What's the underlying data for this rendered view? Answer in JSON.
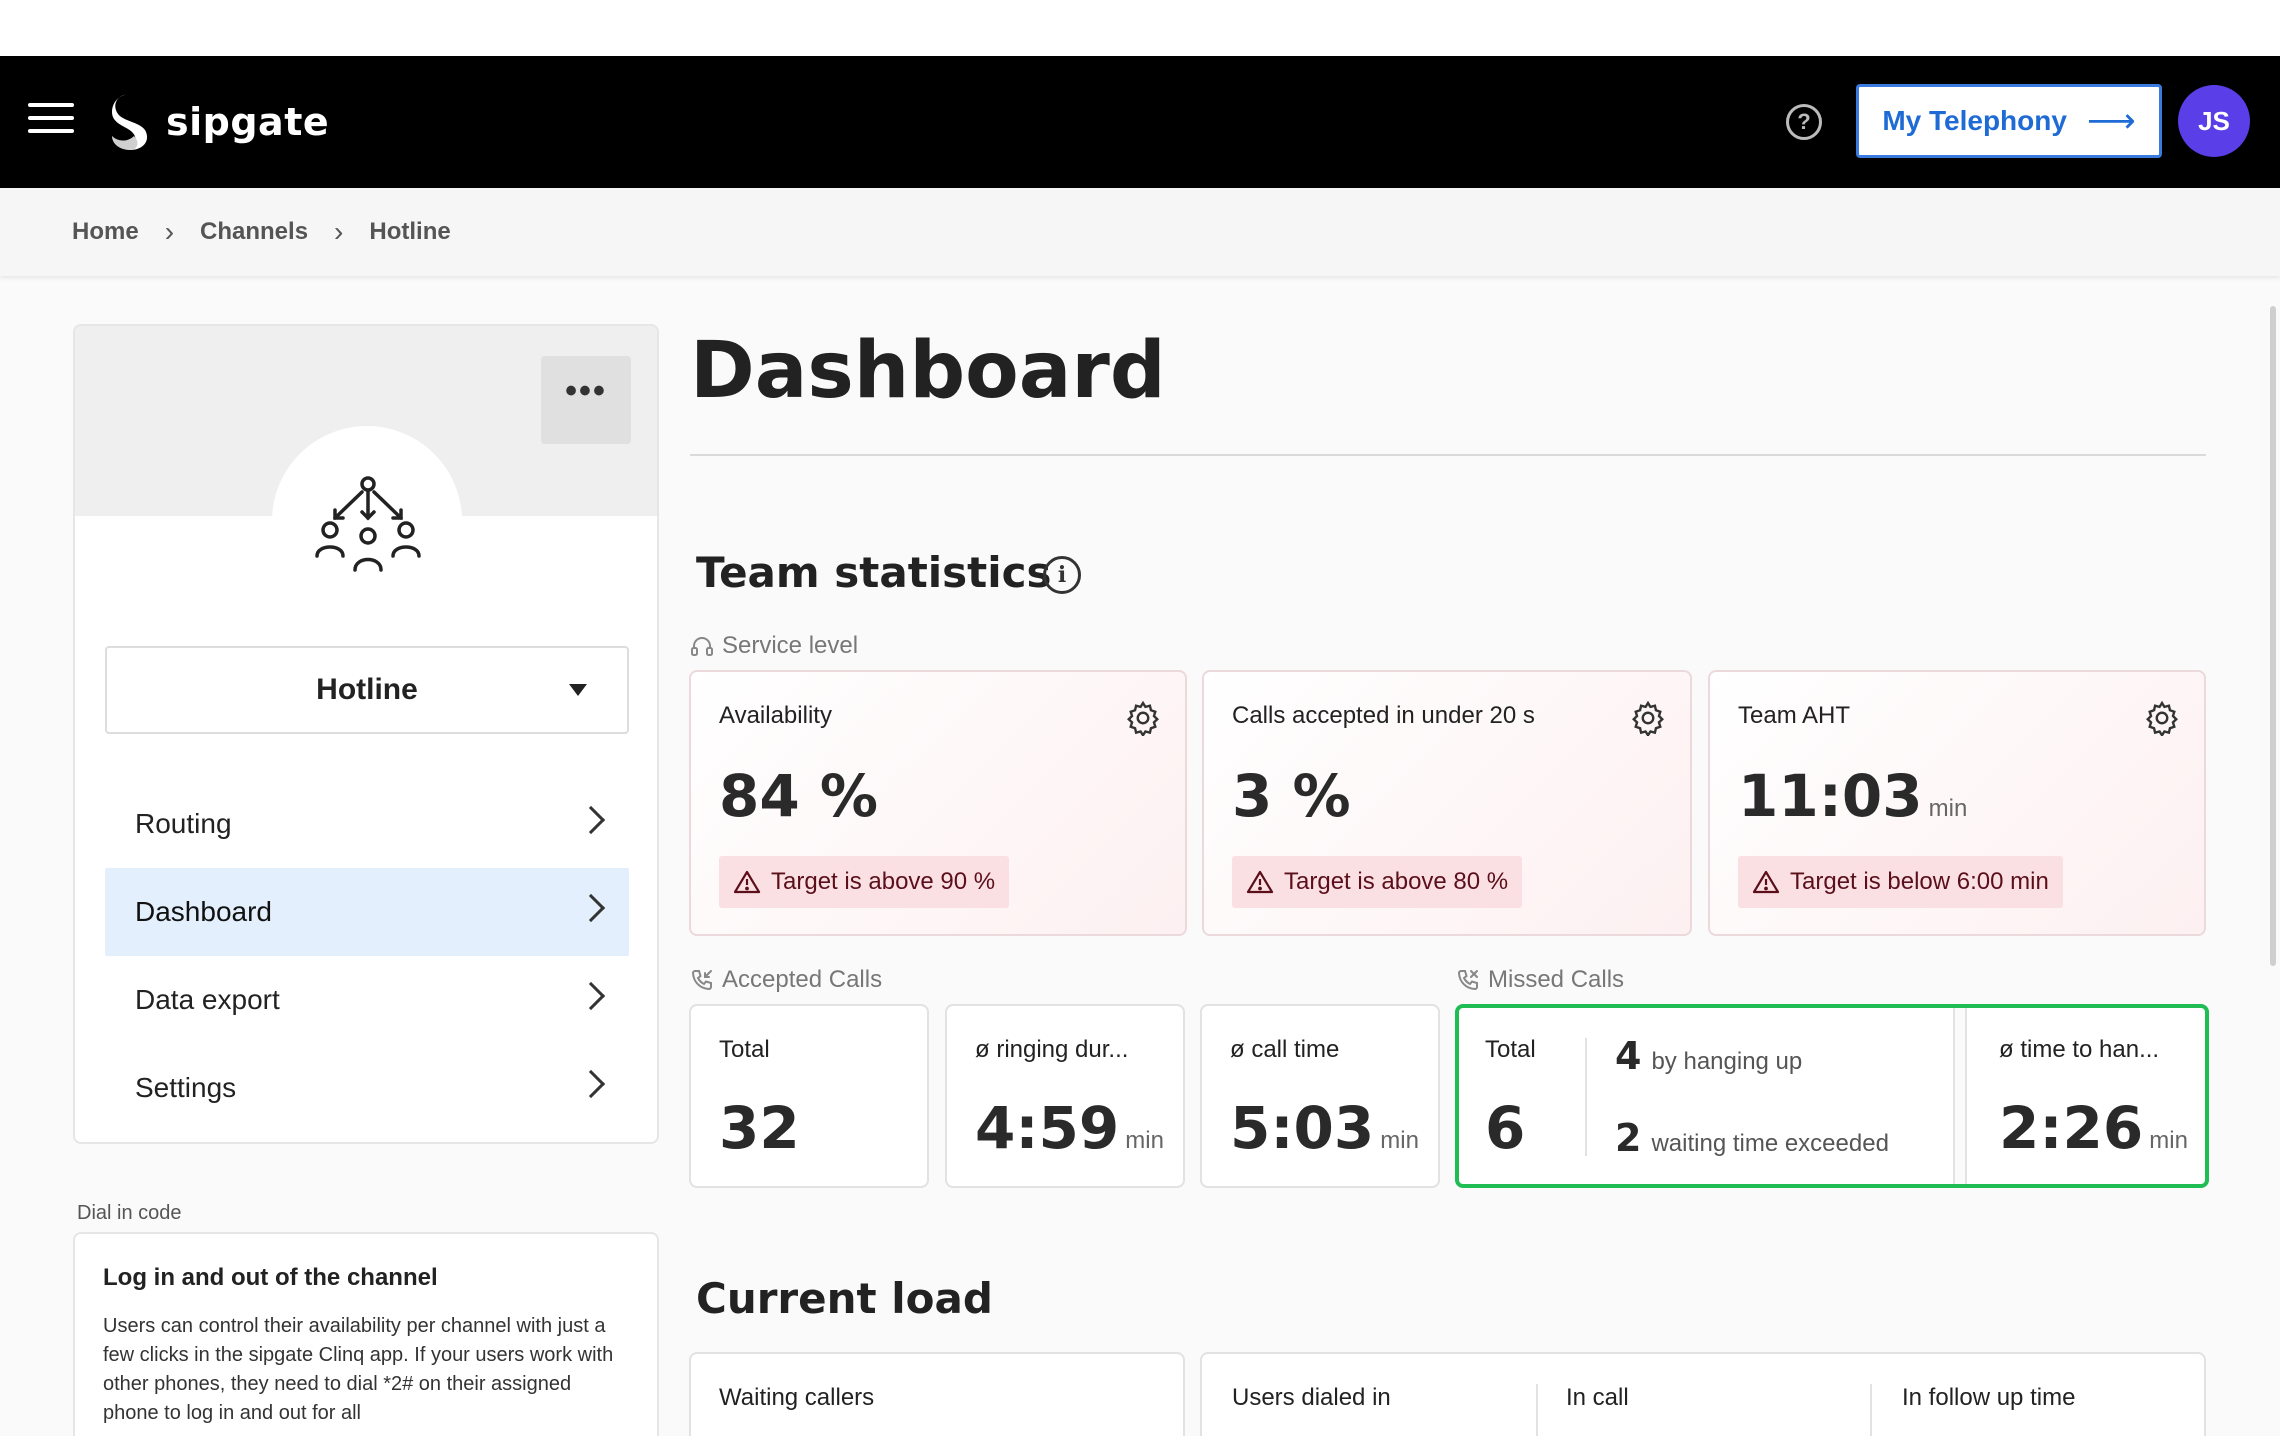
{
  "header": {
    "logo_text": "sipgate",
    "help_icon": "?",
    "telephony_label": "My Telephony",
    "telephony_arrow": "⟶",
    "avatar_initials": "JS",
    "background": "#000000",
    "accent": "#1f6bd6",
    "avatar_color": "#5a3ee8"
  },
  "breadcrumb": {
    "items": [
      "Home",
      "Channels",
      "Hotline"
    ],
    "separator": "›"
  },
  "sidebar": {
    "more_label": "•••",
    "channel_name": "Hotline",
    "nav": [
      {
        "label": "Routing",
        "active": false
      },
      {
        "label": "Dashboard",
        "active": true
      },
      {
        "label": "Data export",
        "active": false
      },
      {
        "label": "Settings",
        "active": false
      }
    ],
    "dial_label": "Dial in code",
    "dial_title": "Log in and out of the channel",
    "dial_text": "Users can control their availability per channel with just a few clicks in the sipgate Clinq app. If your users work with other phones, they need to dial *2# on their assigned phone to log in and out for all"
  },
  "main": {
    "title": "Dashboard",
    "team_statistics": {
      "title": "Team statistics",
      "info_icon": "i",
      "service_level": {
        "label": "Service level",
        "tiles": [
          {
            "label": "Availability",
            "value": "84 %",
            "unit": "",
            "warning": "Target is above 90 %"
          },
          {
            "label": "Calls accepted in under 20 s",
            "value": "3 %",
            "unit": "",
            "warning": "Target is above 80 %"
          },
          {
            "label": "Team AHT",
            "value": "11:03",
            "unit": "min",
            "warning": "Target is below 6:00 min"
          }
        ]
      },
      "accepted_calls": {
        "label": "Accepted Calls",
        "tiles": [
          {
            "label": "Total",
            "value": "32",
            "unit": ""
          },
          {
            "label": "ø ringing dur...",
            "value": "4:59",
            "unit": "min"
          },
          {
            "label": "ø call time",
            "value": "5:03",
            "unit": "min"
          }
        ]
      },
      "missed_calls": {
        "label": "Missed Calls",
        "total_label": "Total",
        "total_value": "6",
        "reasons": [
          {
            "count": "4",
            "text": "by hanging up"
          },
          {
            "count": "2",
            "text": "waiting time exceeded"
          }
        ],
        "time_label": "ø time to han...",
        "time_value": "2:26",
        "time_unit": "min",
        "highlight_color": "#1fbd54"
      }
    },
    "current_load": {
      "title": "Current load",
      "waiting_label": "Waiting callers",
      "columns": [
        "Users dialed in",
        "In call",
        "In follow up time"
      ]
    }
  }
}
